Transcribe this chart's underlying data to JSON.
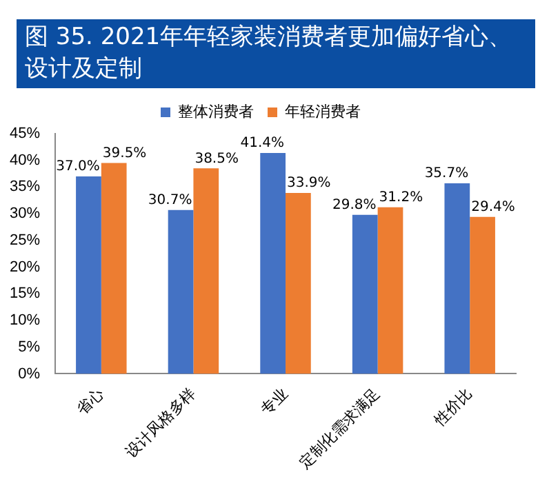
{
  "chart_data": {
    "type": "bar",
    "title": "图 35. 2021年年轻家装消费者更加偏好省心、设计及定制",
    "categories": [
      "省心",
      "设计风格多样",
      "专业",
      "定制化需求满足",
      "性价比"
    ],
    "series": [
      {
        "name": "整体消费者",
        "color": "#4472c4",
        "values": [
          37.0,
          30.7,
          41.4,
          29.8,
          35.7
        ],
        "value_labels": [
          "37.0%",
          "30.7%",
          "41.4%",
          "29.8%",
          "35.7%"
        ]
      },
      {
        "name": "年轻消费者",
        "color": "#ed7d31",
        "values": [
          39.5,
          38.5,
          33.9,
          31.2,
          29.4
        ],
        "value_labels": [
          "39.5%",
          "38.5%",
          "33.9%",
          "31.2%",
          "29.4%"
        ]
      }
    ],
    "ylim": [
      0,
      45
    ],
    "yticks": [
      {
        "value": 0,
        "label": "0%"
      },
      {
        "value": 5,
        "label": "5%"
      },
      {
        "value": 10,
        "label": "10%"
      },
      {
        "value": 15,
        "label": "15%"
      },
      {
        "value": 20,
        "label": "20%"
      },
      {
        "value": 25,
        "label": "25%"
      },
      {
        "value": 30,
        "label": "30%"
      },
      {
        "value": 35,
        "label": "35%"
      },
      {
        "value": 40,
        "label": "40%"
      },
      {
        "value": 45,
        "label": "45%"
      }
    ],
    "grid": false,
    "legend": "top"
  }
}
